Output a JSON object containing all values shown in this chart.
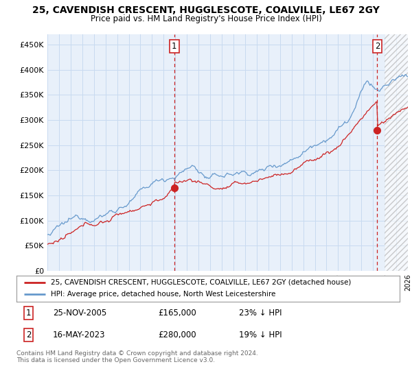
{
  "title_line1": "25, CAVENDISH CRESCENT, HUGGLESCOTE, COALVILLE, LE67 2GY",
  "title_line2": "Price paid vs. HM Land Registry's House Price Index (HPI)",
  "ylabel_ticks": [
    "£0",
    "£50K",
    "£100K",
    "£150K",
    "£200K",
    "£250K",
    "£300K",
    "£350K",
    "£400K",
    "£450K"
  ],
  "ylabel_values": [
    0,
    50000,
    100000,
    150000,
    200000,
    250000,
    300000,
    350000,
    400000,
    450000
  ],
  "ylim": [
    0,
    470000
  ],
  "legend_line1": "25, CAVENDISH CRESCENT, HUGGLESCOTE, COALVILLE, LE67 2GY (detached house)",
  "legend_line2": "HPI: Average price, detached house, North West Leicestershire",
  "annotation1_num": "1",
  "annotation1_date": "25-NOV-2005",
  "annotation1_price": "£165,000",
  "annotation1_hpi": "23% ↓ HPI",
  "annotation2_num": "2",
  "annotation2_date": "16-MAY-2023",
  "annotation2_price": "£280,000",
  "annotation2_hpi": "19% ↓ HPI",
  "footer": "Contains HM Land Registry data © Crown copyright and database right 2024.\nThis data is licensed under the Open Government Licence v3.0.",
  "hpi_color": "#6699cc",
  "price_color": "#cc2222",
  "annotation_color": "#cc2222",
  "background_color": "#ffffff",
  "grid_color": "#c8daf0",
  "plot_bg_color": "#e8f0fa",
  "sale1_year": 2005.917,
  "sale1_price": 165000,
  "sale2_year": 2023.37,
  "sale2_price": 280000,
  "xmin": 1995,
  "xmax": 2026,
  "hatch_start": 2024.0
}
